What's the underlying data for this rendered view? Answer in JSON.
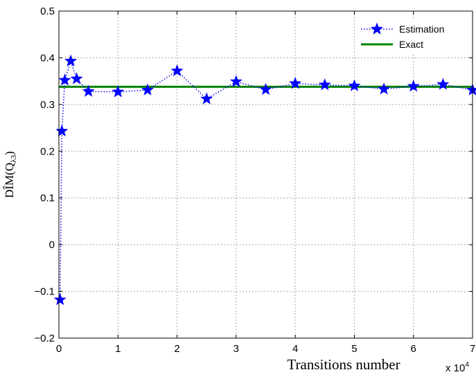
{
  "chart_data": {
    "type": "line",
    "xlabel": "Transitions number",
    "x_exponent": "x 10",
    "x_exponent_power": "4",
    "ylabel": "DÎM(Q",
    "ylabel_sub": "λ3",
    "ylabel_close": ")",
    "xlim": [
      0,
      7
    ],
    "ylim": [
      -0.2,
      0.5
    ],
    "xticks": [
      "0",
      "1",
      "2",
      "3",
      "4",
      "5",
      "6",
      "7"
    ],
    "yticks": [
      "−0.2",
      "−0.1",
      "0",
      "0.1",
      "0.2",
      "0.3",
      "0.4",
      "0.5"
    ],
    "grid": true,
    "legend_position": "top-right",
    "series": [
      {
        "name": "Estimation",
        "style": "dotted-line-star-markers",
        "color": "#0000ff",
        "x": [
          0.02,
          0.05,
          0.1,
          0.2,
          0.3,
          0.5,
          1.0,
          1.5,
          2.0,
          2.5,
          3.0,
          3.5,
          4.0,
          4.5,
          5.0,
          5.5,
          6.0,
          6.5,
          7.0
        ],
        "y": [
          -0.118,
          0.243,
          0.352,
          0.393,
          0.355,
          0.328,
          0.327,
          0.331,
          0.372,
          0.312,
          0.349,
          0.332,
          0.345,
          0.342,
          0.34,
          0.333,
          0.339,
          0.343,
          0.331
        ]
      },
      {
        "name": "Exact",
        "style": "solid-line",
        "color": "#008000",
        "x": [
          0,
          7
        ],
        "y": [
          0.338,
          0.338
        ]
      }
    ]
  }
}
